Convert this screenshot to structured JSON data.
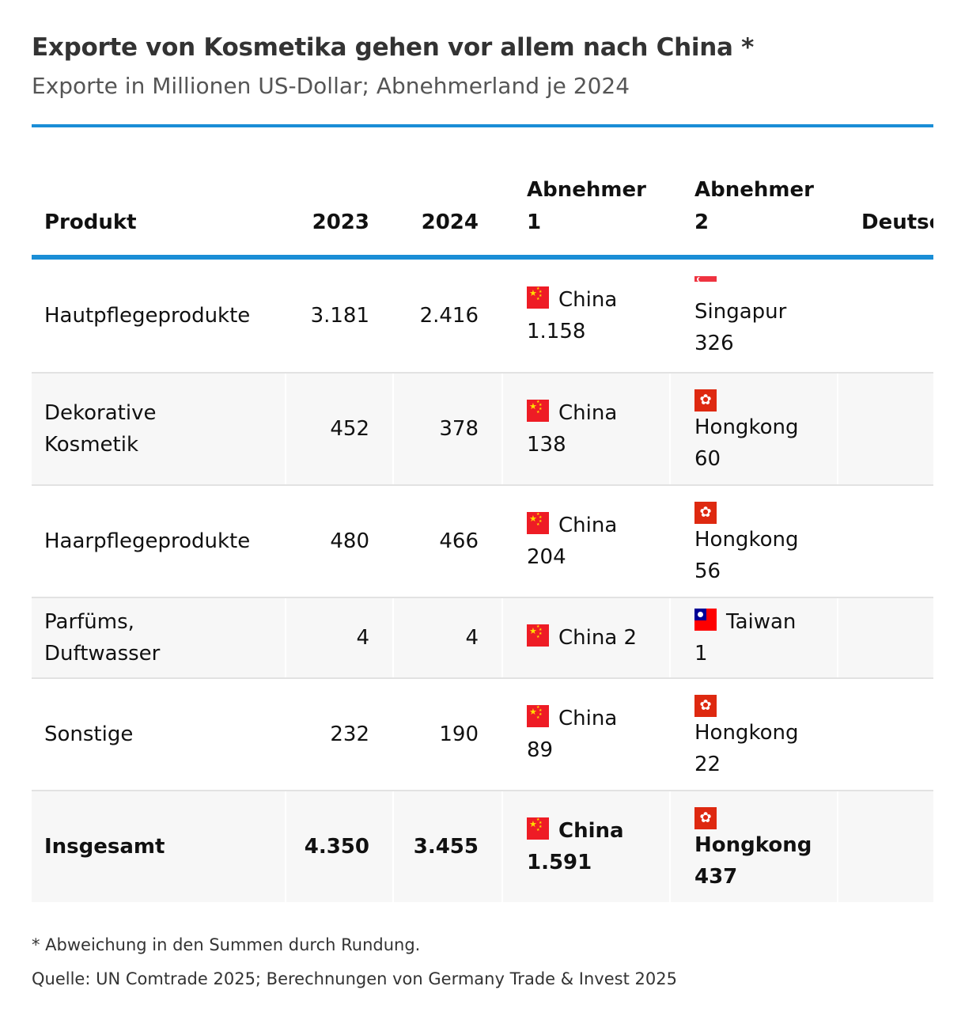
{
  "header": {
    "title": "Exporte von Kosmetika gehen vor allem nach China *",
    "subtitle": "Exporte in Millionen US-Dollar; Abnehmerland je 2024"
  },
  "chart_data": {
    "type": "table",
    "columns": {
      "produkt": "Produkt",
      "y2023": "2023",
      "y2024": "2024",
      "abnehmer1_line1": "Abnehmer",
      "abnehmer1_line2": "1",
      "abnehmer2_line1": "Abnehmer",
      "abnehmer2_line2": "2",
      "deutsch_partial": "Deutsc"
    },
    "rows": [
      {
        "produkt_l1": "Hautpflegeprodukte",
        "produkt_l2": "",
        "y2023": "3.181",
        "y2024": "2.416",
        "a1_flag": "china-flag",
        "a1_country": "China",
        "a1_value": "1.158",
        "a2_flag": "singapore-flag",
        "a2_country": "Singapur",
        "a2_value": "326"
      },
      {
        "produkt_l1": "Dekorative",
        "produkt_l2": "Kosmetik",
        "y2023": "452",
        "y2024": "378",
        "a1_flag": "china-flag",
        "a1_country": "China",
        "a1_value": "138",
        "a2_flag": "hongkong-flag",
        "a2_country": "Hongkong",
        "a2_value": "60"
      },
      {
        "produkt_l1": "Haarpflegeprodukte",
        "produkt_l2": "",
        "y2023": "480",
        "y2024": "466",
        "a1_flag": "china-flag",
        "a1_country": "China",
        "a1_value": "204",
        "a2_flag": "hongkong-flag",
        "a2_country": "Hongkong",
        "a2_value": "56"
      },
      {
        "produkt_l1": "Parfüms,",
        "produkt_l2": "Duftwasser",
        "y2023": "4",
        "y2024": "4",
        "a1_flag": "china-flag",
        "a1_country": "China",
        "a1_value": "2",
        "a2_flag": "taiwan-flag",
        "a2_country": "Taiwan",
        "a2_value": "1"
      },
      {
        "produkt_l1": "Sonstige",
        "produkt_l2": "",
        "y2023": "232",
        "y2024": "190",
        "a1_flag": "china-flag",
        "a1_country": "China",
        "a1_value": "89",
        "a2_flag": "hongkong-flag",
        "a2_country": "Hongkong",
        "a2_value": "22"
      },
      {
        "produkt_l1": "Insgesamt",
        "produkt_l2": "",
        "y2023": "4.350",
        "y2024": "3.455",
        "a1_flag": "china-flag",
        "a1_country": "China",
        "a1_value": "1.591",
        "a2_flag": "hongkong-flag",
        "a2_country": "Hongkong",
        "a2_value": "437"
      }
    ]
  },
  "footer": {
    "note": "* Abweichung in den Summen durch Rundung.",
    "source": "Quelle: UN Comtrade 2025; Berechnungen von Germany Trade & Invest 2025"
  },
  "colors": {
    "accent": "#1a8ed6",
    "row_alt": "#f7f7f7",
    "china_red": "#ee1c25",
    "hk_red": "#de2910"
  }
}
